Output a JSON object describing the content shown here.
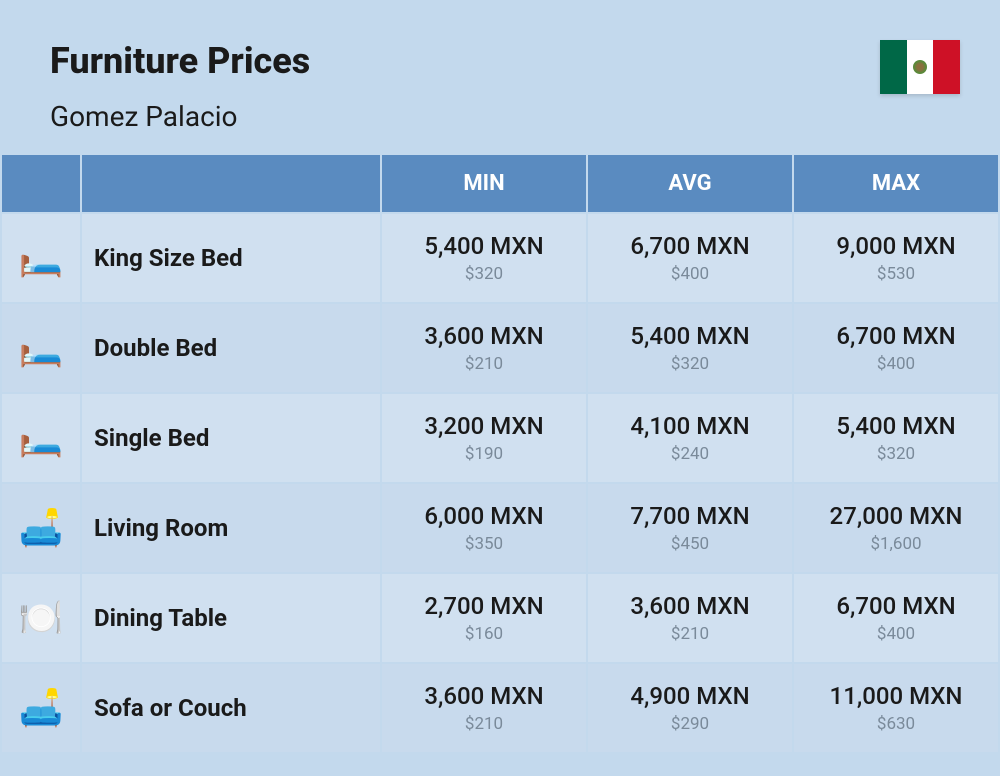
{
  "header": {
    "title": "Furniture Prices",
    "subtitle": "Gomez Palacio"
  },
  "columns": {
    "min": "MIN",
    "avg": "AVG",
    "max": "MAX"
  },
  "rows": [
    {
      "icon": "🛏️",
      "name": "King Size Bed",
      "min_main": "5,400 MXN",
      "min_sub": "$320",
      "avg_main": "6,700 MXN",
      "avg_sub": "$400",
      "max_main": "9,000 MXN",
      "max_sub": "$530"
    },
    {
      "icon": "🛏️",
      "name": "Double Bed",
      "min_main": "3,600 MXN",
      "min_sub": "$210",
      "avg_main": "5,400 MXN",
      "avg_sub": "$320",
      "max_main": "6,700 MXN",
      "max_sub": "$400"
    },
    {
      "icon": "🛏️",
      "name": "Single Bed",
      "min_main": "3,200 MXN",
      "min_sub": "$190",
      "avg_main": "4,100 MXN",
      "avg_sub": "$240",
      "max_main": "5,400 MXN",
      "max_sub": "$320"
    },
    {
      "icon": "🛋️",
      "name": "Living Room",
      "min_main": "6,000 MXN",
      "min_sub": "$350",
      "avg_main": "7,700 MXN",
      "avg_sub": "$450",
      "max_main": "27,000 MXN",
      "max_sub": "$1,600"
    },
    {
      "icon": "🍽️",
      "name": "Dining Table",
      "min_main": "2,700 MXN",
      "min_sub": "$160",
      "avg_main": "3,600 MXN",
      "avg_sub": "$210",
      "max_main": "6,700 MXN",
      "max_sub": "$400"
    },
    {
      "icon": "🛋️",
      "name": "Sofa or Couch",
      "min_main": "3,600 MXN",
      "min_sub": "$210",
      "avg_main": "4,900 MXN",
      "avg_sub": "$290",
      "max_main": "11,000 MXN",
      "max_sub": "$630"
    }
  ],
  "styling": {
    "background_color": "#c3d9ed",
    "header_bg": "#5a8bc0",
    "header_text": "#ffffff",
    "row_bg_odd": "#d0e0f0",
    "row_bg_even": "#c8daed",
    "title_color": "#1a1a1a",
    "price_sub_color": "#7a8a9a",
    "title_fontsize": 36,
    "subtitle_fontsize": 28,
    "header_fontsize": 22,
    "name_fontsize": 24,
    "price_main_fontsize": 24,
    "price_sub_fontsize": 17
  }
}
